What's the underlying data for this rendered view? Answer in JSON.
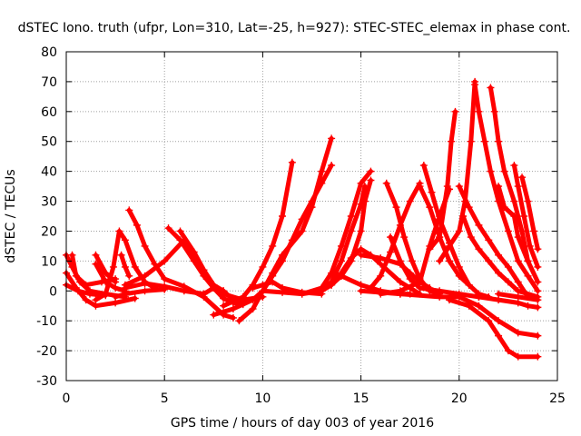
{
  "chart_data": {
    "type": "scatter",
    "title": "dSTEC Iono. truth (ufpr, Lon=310, Lat=-25, h=927): STEC-STEC_elemax in phase cont.",
    "xlabel": "GPS time / hours of day 003 of year 2016",
    "ylabel": "dSTEC  / TECUs",
    "xlim": [
      0,
      25
    ],
    "ylim": [
      -30,
      80
    ],
    "xticks": [
      0,
      5,
      10,
      15,
      20,
      25
    ],
    "yticks": [
      -30,
      -20,
      -10,
      0,
      10,
      20,
      30,
      40,
      50,
      60,
      70,
      80
    ],
    "grid": true,
    "marker": "plus",
    "color": "#ff0000",
    "series": [
      {
        "points": [
          [
            0,
            12
          ],
          [
            0.3,
            8
          ],
          [
            0.7,
            3
          ],
          [
            1.2,
            0
          ],
          [
            2,
            -1
          ],
          [
            3,
            -2
          ]
        ]
      },
      {
        "points": [
          [
            0,
            6
          ],
          [
            0.5,
            1
          ],
          [
            1,
            -3
          ],
          [
            1.5,
            -5
          ],
          [
            2.5,
            -4
          ],
          [
            3.5,
            -2.5
          ]
        ]
      },
      {
        "points": [
          [
            0,
            2
          ],
          [
            0.6,
            0
          ],
          [
            1.2,
            -1
          ],
          [
            2,
            -1.5
          ]
        ]
      },
      {
        "points": [
          [
            0.3,
            12
          ],
          [
            0.5,
            5
          ],
          [
            1,
            2
          ],
          [
            1.8,
            3
          ],
          [
            2.5,
            4
          ]
        ]
      },
      {
        "points": [
          [
            1.5,
            -3
          ],
          [
            2,
            -1
          ],
          [
            2.4,
            8
          ],
          [
            2.7,
            20
          ],
          [
            3,
            17
          ],
          [
            3.5,
            8
          ],
          [
            4,
            3
          ],
          [
            4.5,
            1
          ]
        ]
      },
      {
        "points": [
          [
            1.5,
            12
          ],
          [
            2,
            6
          ],
          [
            2.5,
            3
          ]
        ]
      },
      {
        "points": [
          [
            1.5,
            9
          ],
          [
            2,
            3
          ],
          [
            2.5,
            1
          ],
          [
            3,
            0
          ]
        ]
      },
      {
        "points": [
          [
            2.8,
            12
          ],
          [
            3,
            8
          ],
          [
            3.2,
            5
          ]
        ]
      },
      {
        "points": [
          [
            3.2,
            27
          ],
          [
            3.6,
            22
          ],
          [
            4,
            15
          ],
          [
            4.5,
            9
          ],
          [
            5,
            4
          ],
          [
            6,
            1.5
          ],
          [
            7,
            -2
          ],
          [
            8,
            -8
          ],
          [
            8.5,
            -9
          ]
        ]
      },
      {
        "points": [
          [
            3,
            2
          ],
          [
            4,
            5
          ],
          [
            5,
            10
          ],
          [
            6,
            17
          ],
          [
            6.5,
            12
          ],
          [
            7,
            5
          ],
          [
            7.5,
            2
          ],
          [
            8,
            0
          ]
        ]
      },
      {
        "points": [
          [
            2.5,
            -2
          ],
          [
            3,
            -1
          ],
          [
            4,
            0
          ],
          [
            5,
            0.5
          ]
        ]
      },
      {
        "points": [
          [
            5.2,
            21
          ],
          [
            5.8,
            17
          ],
          [
            6.5,
            10
          ],
          [
            7,
            5
          ],
          [
            7.5,
            1
          ],
          [
            8,
            -2.5
          ],
          [
            8.5,
            -4
          ],
          [
            9,
            -4.5
          ]
        ]
      },
      {
        "points": [
          [
            5.8,
            20
          ],
          [
            6.5,
            13
          ],
          [
            7,
            7
          ],
          [
            7.5,
            2
          ],
          [
            8,
            -1
          ],
          [
            9,
            -3
          ],
          [
            10,
            -2
          ]
        ]
      },
      {
        "points": [
          [
            3,
            1
          ],
          [
            4,
            2.5
          ],
          [
            5,
            1.5
          ],
          [
            6,
            0
          ],
          [
            7,
            -1
          ]
        ]
      },
      {
        "points": [
          [
            7,
            -1
          ],
          [
            7.5,
            1
          ],
          [
            8,
            0
          ],
          [
            8.5,
            -3
          ],
          [
            9,
            -4
          ]
        ]
      },
      {
        "points": [
          [
            8,
            -5
          ],
          [
            9,
            -2
          ],
          [
            9.5,
            2
          ],
          [
            10,
            8
          ],
          [
            10.5,
            15
          ],
          [
            11,
            25
          ],
          [
            11.5,
            43
          ]
        ]
      },
      {
        "points": [
          [
            8.8,
            -10
          ],
          [
            9.5,
            -6
          ],
          [
            10,
            0
          ],
          [
            10.5,
            6
          ],
          [
            11,
            12
          ],
          [
            12,
            20
          ],
          [
            12.5,
            28
          ],
          [
            13,
            40
          ],
          [
            13.5,
            51
          ]
        ]
      },
      {
        "points": [
          [
            7.5,
            -8
          ],
          [
            8.5,
            -6
          ],
          [
            9.5,
            -3
          ],
          [
            10,
            0
          ],
          [
            10.5,
            5
          ],
          [
            11,
            10
          ],
          [
            11.5,
            17
          ],
          [
            12,
            24
          ],
          [
            12.5,
            30
          ],
          [
            13,
            36
          ],
          [
            13.5,
            42
          ]
        ]
      },
      {
        "points": [
          [
            9.5,
            1
          ],
          [
            10,
            2
          ],
          [
            10.5,
            3
          ],
          [
            11,
            1
          ],
          [
            12,
            -0.5
          ],
          [
            13,
            -1
          ]
        ]
      },
      {
        "points": [
          [
            10,
            0
          ],
          [
            11,
            -0.5
          ],
          [
            12,
            -1
          ],
          [
            13,
            0
          ],
          [
            13.5,
            2
          ],
          [
            14,
            5
          ],
          [
            14.5,
            10
          ],
          [
            15,
            20
          ],
          [
            15.2,
            30
          ],
          [
            15.5,
            37
          ]
        ]
      },
      {
        "points": [
          [
            12,
            -1
          ],
          [
            13,
            1
          ],
          [
            13.5,
            6
          ],
          [
            14,
            15
          ],
          [
            14.5,
            25
          ],
          [
            15,
            36
          ],
          [
            15.5,
            40
          ]
        ]
      },
      {
        "points": [
          [
            13,
            0
          ],
          [
            13.5,
            3
          ],
          [
            14,
            10
          ],
          [
            14.5,
            20
          ],
          [
            15,
            29
          ],
          [
            15.2,
            35
          ]
        ]
      },
      {
        "points": [
          [
            13.5,
            2
          ],
          [
            14,
            6
          ],
          [
            14.5,
            11
          ],
          [
            15,
            14
          ],
          [
            15.5,
            12
          ],
          [
            16,
            9
          ],
          [
            17,
            3
          ],
          [
            18,
            -1
          ]
        ]
      },
      {
        "points": [
          [
            14,
            5
          ],
          [
            15,
            2
          ],
          [
            16,
            0
          ],
          [
            17,
            -1
          ],
          [
            17.5,
            -1
          ]
        ]
      },
      {
        "points": [
          [
            15,
            12
          ],
          [
            16,
            11
          ],
          [
            17,
            9
          ],
          [
            17.5,
            6
          ],
          [
            18,
            3
          ],
          [
            18.5,
            1
          ]
        ]
      },
      {
        "points": [
          [
            15.5,
            1
          ],
          [
            16,
            5
          ],
          [
            16.5,
            13
          ],
          [
            17,
            22
          ],
          [
            17.5,
            30
          ],
          [
            18,
            36
          ]
        ]
      },
      {
        "points": [
          [
            16.3,
            36
          ],
          [
            16.8,
            28
          ],
          [
            17.2,
            18
          ],
          [
            17.6,
            10
          ],
          [
            18,
            4
          ],
          [
            18.5,
            0
          ],
          [
            19,
            -1
          ]
        ]
      },
      {
        "points": [
          [
            16.5,
            18
          ],
          [
            17,
            10
          ],
          [
            17.5,
            4
          ],
          [
            18,
            1
          ],
          [
            19,
            0
          ],
          [
            20,
            -1
          ],
          [
            21,
            -2
          ]
        ]
      },
      {
        "points": [
          [
            16,
            -1
          ],
          [
            17,
            0
          ],
          [
            18,
            3
          ],
          [
            18.5,
            15
          ],
          [
            19,
            25
          ],
          [
            19.5,
            34
          ]
        ]
      },
      {
        "points": [
          [
            18.2,
            42
          ],
          [
            18.6,
            33
          ],
          [
            19,
            24
          ],
          [
            19.5,
            16
          ],
          [
            20,
            8
          ],
          [
            20.5,
            2
          ],
          [
            21,
            -1
          ],
          [
            21.5,
            -2
          ]
        ]
      },
      {
        "points": [
          [
            18,
            35
          ],
          [
            18.5,
            28
          ],
          [
            19,
            18
          ],
          [
            19.5,
            10
          ],
          [
            20,
            5
          ],
          [
            20.5,
            2
          ]
        ]
      },
      {
        "points": [
          [
            18.5,
            14
          ],
          [
            19,
            18
          ],
          [
            19.4,
            35
          ],
          [
            19.6,
            50
          ],
          [
            19.8,
            60
          ]
        ]
      },
      {
        "points": [
          [
            19,
            10
          ],
          [
            19.5,
            15
          ],
          [
            20,
            20
          ],
          [
            20.3,
            30
          ],
          [
            20.6,
            50
          ],
          [
            20.8,
            70
          ]
        ]
      },
      {
        "points": [
          [
            20,
            35
          ],
          [
            20.5,
            28
          ],
          [
            21,
            22
          ],
          [
            21.5,
            17
          ],
          [
            22,
            12
          ],
          [
            22.5,
            8
          ],
          [
            23,
            3
          ],
          [
            23.5,
            -2
          ]
        ]
      },
      {
        "points": [
          [
            20.2,
            25
          ],
          [
            20.6,
            18
          ],
          [
            21,
            14
          ],
          [
            21.5,
            10
          ],
          [
            22,
            6
          ],
          [
            22.5,
            3
          ],
          [
            23,
            0
          ],
          [
            24,
            -2
          ]
        ]
      },
      {
        "points": [
          [
            20.8,
            69
          ],
          [
            21,
            60
          ],
          [
            21.3,
            50
          ],
          [
            21.6,
            40
          ],
          [
            22,
            30
          ],
          [
            22.5,
            20
          ],
          [
            23,
            10
          ],
          [
            23.5,
            5
          ],
          [
            24,
            0
          ]
        ]
      },
      {
        "points": [
          [
            21.6,
            68
          ],
          [
            21.8,
            60
          ],
          [
            22,
            50
          ],
          [
            22.3,
            40
          ],
          [
            22.8,
            30
          ],
          [
            23.2,
            20
          ],
          [
            23.5,
            10
          ],
          [
            24,
            3
          ]
        ]
      },
      {
        "points": [
          [
            22,
            35
          ],
          [
            22.3,
            28
          ],
          [
            22.8,
            25
          ],
          [
            23,
            18
          ],
          [
            23.5,
            10
          ]
        ]
      },
      {
        "points": [
          [
            22.8,
            42
          ],
          [
            23,
            35
          ],
          [
            23.3,
            25
          ],
          [
            23.6,
            15
          ],
          [
            24,
            8
          ]
        ]
      },
      {
        "points": [
          [
            23.2,
            38
          ],
          [
            23.5,
            30
          ],
          [
            23.8,
            20
          ],
          [
            24,
            14
          ]
        ]
      },
      {
        "points": [
          [
            15,
            0
          ],
          [
            17,
            -1
          ],
          [
            19,
            -2
          ],
          [
            20,
            -2
          ],
          [
            21,
            -5
          ],
          [
            22,
            -10
          ],
          [
            23,
            -14
          ],
          [
            24,
            -15
          ]
        ]
      },
      {
        "points": [
          [
            19.5,
            -3
          ],
          [
            20.5,
            -5
          ],
          [
            21.5,
            -10
          ],
          [
            22,
            -15
          ],
          [
            22.5,
            -20
          ],
          [
            23,
            -22
          ],
          [
            24,
            -22
          ]
        ]
      },
      {
        "points": [
          [
            21,
            -2
          ],
          [
            22,
            -3
          ],
          [
            23,
            -4
          ],
          [
            23.5,
            -5
          ],
          [
            24,
            -5.5
          ]
        ]
      },
      {
        "points": [
          [
            22,
            -1
          ],
          [
            23,
            -2
          ],
          [
            24,
            -3
          ]
        ]
      }
    ]
  }
}
